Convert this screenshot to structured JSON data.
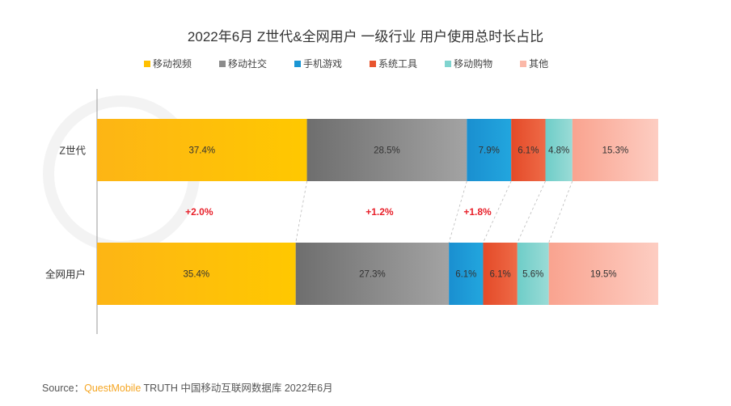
{
  "chart_data": {
    "type": "bar",
    "orientation": "horizontal",
    "stacked": true,
    "title": "2022年6月 Z世代&全网用户 一级行业 用户使用总时长占比",
    "categories": [
      "Z世代",
      "全网用户"
    ],
    "series": [
      {
        "name": "移动视频",
        "color": "#FFC000",
        "values": [
          37.4,
          35.4
        ]
      },
      {
        "name": "移动社交",
        "color": "#8C8C8C",
        "values": [
          28.5,
          27.3
        ]
      },
      {
        "name": "手机游戏",
        "color": "#1A96D4",
        "values": [
          7.9,
          6.1
        ]
      },
      {
        "name": "系统工具",
        "color": "#E8542E",
        "values": [
          6.1,
          6.1
        ]
      },
      {
        "name": "移动购物",
        "color": "#80D4CF",
        "values": [
          4.8,
          5.6
        ]
      },
      {
        "name": "其他",
        "color": "#FBB8A8",
        "values": [
          15.3,
          19.5
        ]
      }
    ],
    "value_labels": [
      [
        "37.4%",
        "28.5%",
        "7.9%",
        "6.1%",
        "4.8%",
        "15.3%"
      ],
      [
        "35.4%",
        "27.3%",
        "6.1%",
        "6.1%",
        "5.6%",
        "19.5%"
      ]
    ],
    "annotations": [
      {
        "series": "移动视频",
        "text": "+2.0%",
        "color": "#E8202A"
      },
      {
        "series": "移动社交",
        "text": "+1.2%",
        "color": "#E8202A"
      },
      {
        "series": "手机游戏",
        "text": "+1.8%",
        "color": "#E8202A"
      }
    ],
    "xlim": [
      0,
      100
    ],
    "legend": "top",
    "grid": false
  },
  "watermark": "QUESTMOBILE",
  "source": {
    "prefix": "Source：",
    "brand": "QuestMobile",
    "rest": " TRUTH 中国移动互联网数据库 2022年6月"
  }
}
